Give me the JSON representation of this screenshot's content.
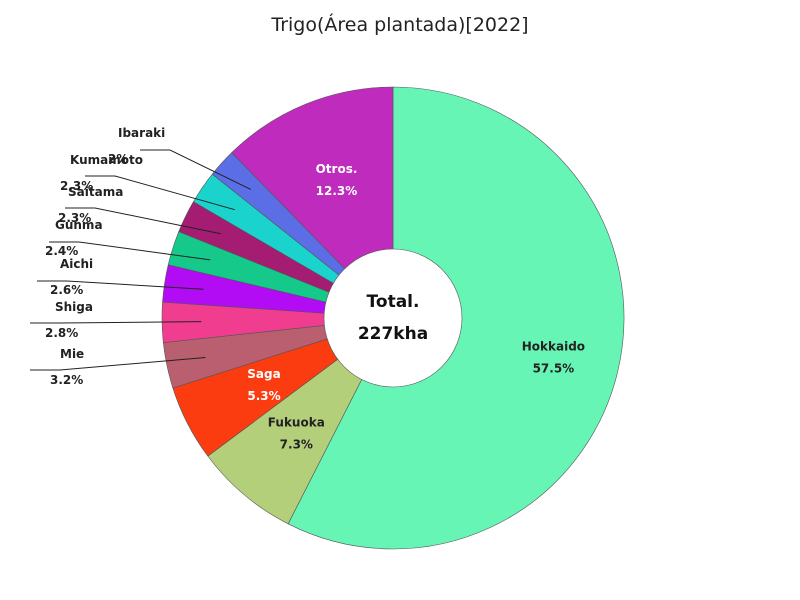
{
  "chart_data": {
    "type": "pie",
    "title": "Trigo(Área plantada)[2022]",
    "center_label": "Total.",
    "center_value": "227kha",
    "slices": [
      {
        "name": "Hokkaido",
        "label": "57.5%",
        "value": 57.5,
        "color": "#66f5b5"
      },
      {
        "name": "Fukuoka",
        "label": "7.3%",
        "value": 7.3,
        "color": "#b4cf7a"
      },
      {
        "name": "Saga",
        "label": "5.3%",
        "value": 5.3,
        "color": "#fb3b10"
      },
      {
        "name": "Mie",
        "label": "3.2%",
        "value": 3.2,
        "color": "#ba5f6f"
      },
      {
        "name": "Shiga",
        "label": "2.8%",
        "value": 2.8,
        "color": "#f03d90"
      },
      {
        "name": "Aichi",
        "label": "2.6%",
        "value": 2.6,
        "color": "#b10cf4"
      },
      {
        "name": "Gunma",
        "label": "2.4%",
        "value": 2.4,
        "color": "#14c98a"
      },
      {
        "name": "Saitama",
        "label": "2.3%",
        "value": 2.3,
        "color": "#a51c73"
      },
      {
        "name": "Kumamoto",
        "label": "2.3%",
        "value": 2.3,
        "color": "#1bd3cd"
      },
      {
        "name": "Ibaraki",
        "label": "2%",
        "value": 2.0,
        "color": "#5b6ee6"
      },
      {
        "name": "Otros.",
        "label": "12.3%",
        "value": 12.3,
        "color": "#bf2bbd"
      }
    ]
  }
}
